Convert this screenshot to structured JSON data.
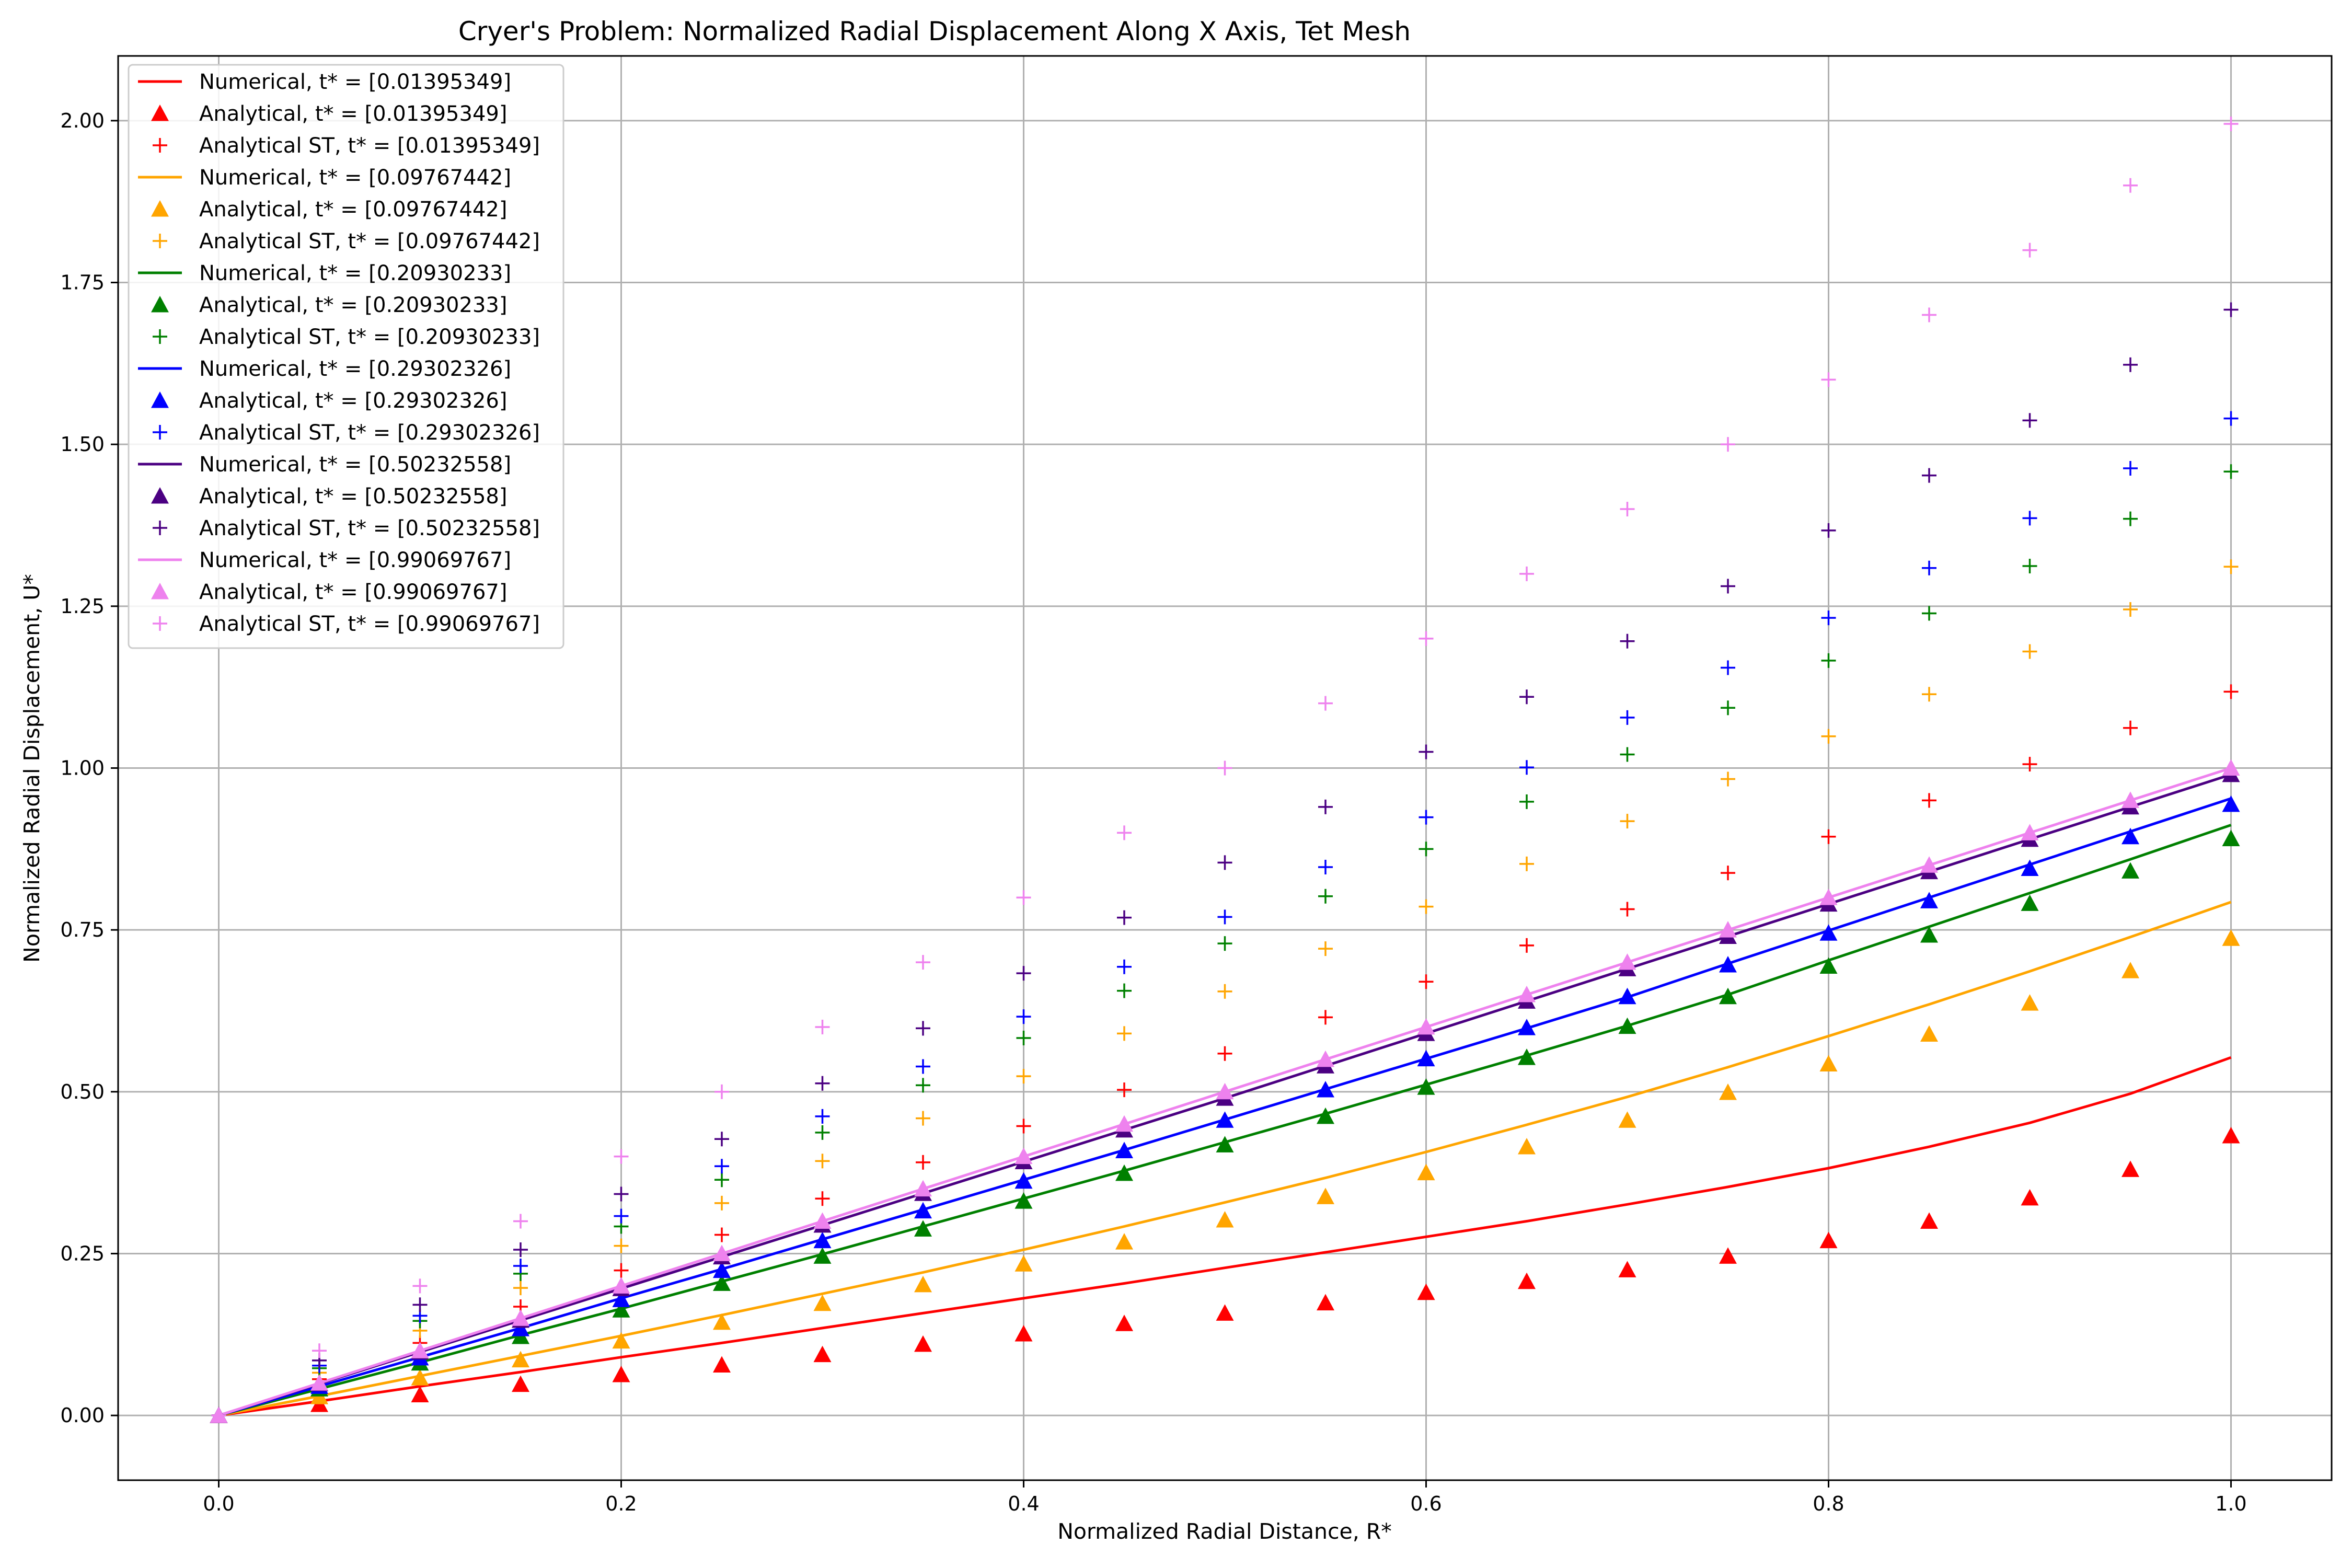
{
  "chart_data": {
    "type": "line",
    "title": "Cryer's Problem: Normalized Radial Displacement Along X Axis, Tet Mesh",
    "xlabel": "Normalized Radial Distance, R*",
    "ylabel": "Normalized Radial Displacement, U*",
    "xlim": [
      -0.05,
      1.05
    ],
    "ylim": [
      -0.1,
      2.1
    ],
    "xticks": [
      0.0,
      0.2,
      0.4,
      0.6,
      0.8,
      1.0
    ],
    "xtick_labels": [
      "0.0",
      "0.2",
      "0.4",
      "0.6",
      "0.8",
      "1.0"
    ],
    "yticks": [
      0.0,
      0.25,
      0.5,
      0.75,
      1.0,
      1.25,
      1.5,
      1.75,
      2.0
    ],
    "ytick_labels": [
      "0.00",
      "0.25",
      "0.50",
      "0.75",
      "1.00",
      "1.25",
      "1.50",
      "1.75",
      "2.00"
    ],
    "grid": true,
    "legend_position": "top-left",
    "x": [
      0.0,
      0.05,
      0.1,
      0.15,
      0.2,
      0.25,
      0.3,
      0.35,
      0.4,
      0.45,
      0.5,
      0.55,
      0.6,
      0.65,
      0.7,
      0.75,
      0.8,
      0.85,
      0.9,
      0.95,
      1.0
    ],
    "series": [
      {
        "name": "Numerical, t* = [0.01395349]",
        "kind": "line",
        "color": "#ff0000",
        "values": [
          0.0,
          0.022,
          0.045,
          0.067,
          0.09,
          0.112,
          0.135,
          0.158,
          0.181,
          0.204,
          0.228,
          0.252,
          0.276,
          0.3,
          0.326,
          0.353,
          0.382,
          0.415,
          0.452,
          0.497,
          0.553
        ]
      },
      {
        "name": "Analytical, t* = [0.01395349]",
        "kind": "triangle",
        "color": "#ff0000",
        "values": [
          0.0,
          0.017,
          0.032,
          0.048,
          0.063,
          0.078,
          0.094,
          0.11,
          0.126,
          0.142,
          0.158,
          0.174,
          0.19,
          0.207,
          0.225,
          0.246,
          0.27,
          0.3,
          0.336,
          0.38,
          0.432
        ]
      },
      {
        "name": "Analytical ST, t* = [0.01395349]",
        "kind": "plus",
        "color": "#ff0000",
        "values": [
          0.0,
          0.056,
          0.112,
          0.168,
          0.224,
          0.279,
          0.335,
          0.391,
          0.447,
          0.503,
          0.559,
          0.615,
          0.67,
          0.726,
          0.782,
          0.838,
          0.894,
          0.95,
          1.006,
          1.062,
          1.118
        ]
      },
      {
        "name": "Numerical, t* = [0.09767442]",
        "kind": "line",
        "color": "#ffa500",
        "values": [
          0.0,
          0.03,
          0.061,
          0.092,
          0.123,
          0.155,
          0.188,
          0.221,
          0.256,
          0.292,
          0.329,
          0.367,
          0.407,
          0.449,
          0.492,
          0.538,
          0.586,
          0.635,
          0.686,
          0.739,
          0.793
        ]
      },
      {
        "name": "Analytical, t* = [0.09767442]",
        "kind": "triangle",
        "color": "#ffa500",
        "values": [
          0.0,
          0.029,
          0.058,
          0.086,
          0.115,
          0.144,
          0.173,
          0.202,
          0.234,
          0.268,
          0.302,
          0.338,
          0.375,
          0.415,
          0.456,
          0.499,
          0.543,
          0.589,
          0.637,
          0.687,
          0.737
        ]
      },
      {
        "name": "Analytical ST, t* = [0.09767442]",
        "kind": "plus",
        "color": "#ffa500",
        "values": [
          0.0,
          0.066,
          0.131,
          0.197,
          0.262,
          0.328,
          0.393,
          0.459,
          0.524,
          0.59,
          0.655,
          0.721,
          0.786,
          0.852,
          0.918,
          0.983,
          1.049,
          1.114,
          1.18,
          1.245,
          1.311
        ]
      },
      {
        "name": "Numerical, t* = [0.20930233]",
        "kind": "line",
        "color": "#008000",
        "values": [
          0.0,
          0.041,
          0.082,
          0.124,
          0.165,
          0.207,
          0.249,
          0.292,
          0.335,
          0.378,
          0.422,
          0.466,
          0.511,
          0.556,
          0.602,
          0.65,
          0.703,
          0.755,
          0.807,
          0.859,
          0.912
        ]
      },
      {
        "name": "Analytical, t* = [0.20930233]",
        "kind": "triangle",
        "color": "#008000",
        "values": [
          0.0,
          0.041,
          0.081,
          0.122,
          0.163,
          0.204,
          0.246,
          0.288,
          0.331,
          0.374,
          0.418,
          0.462,
          0.507,
          0.553,
          0.601,
          0.647,
          0.694,
          0.742,
          0.791,
          0.841,
          0.891
        ]
      },
      {
        "name": "Analytical ST, t* = [0.20930233]",
        "kind": "plus",
        "color": "#008000",
        "values": [
          0.0,
          0.073,
          0.146,
          0.219,
          0.292,
          0.364,
          0.437,
          0.51,
          0.583,
          0.656,
          0.729,
          0.802,
          0.875,
          0.948,
          1.021,
          1.093,
          1.166,
          1.239,
          1.312,
          1.385,
          1.458
        ]
      },
      {
        "name": "Numerical, t* = [0.29302326]",
        "kind": "line",
        "color": "#0000ff",
        "values": [
          0.0,
          0.045,
          0.09,
          0.135,
          0.181,
          0.226,
          0.272,
          0.318,
          0.364,
          0.41,
          0.457,
          0.504,
          0.551,
          0.598,
          0.646,
          0.698,
          0.749,
          0.8,
          0.851,
          0.902,
          0.953
        ]
      },
      {
        "name": "Analytical, t* = [0.29302326]",
        "kind": "triangle",
        "color": "#0000ff",
        "values": [
          0.0,
          0.045,
          0.089,
          0.134,
          0.179,
          0.224,
          0.27,
          0.316,
          0.362,
          0.409,
          0.456,
          0.503,
          0.551,
          0.599,
          0.647,
          0.696,
          0.745,
          0.795,
          0.845,
          0.894,
          0.944
        ]
      },
      {
        "name": "Analytical ST, t* = [0.29302326]",
        "kind": "plus",
        "color": "#0000ff",
        "values": [
          0.0,
          0.077,
          0.154,
          0.231,
          0.308,
          0.385,
          0.462,
          0.539,
          0.616,
          0.693,
          0.77,
          0.847,
          0.924,
          1.001,
          1.078,
          1.155,
          1.232,
          1.309,
          1.386,
          1.463,
          1.54
        ]
      },
      {
        "name": "Numerical, t* = [0.50232558]",
        "kind": "line",
        "color": "#4b0082",
        "values": [
          0.0,
          0.049,
          0.098,
          0.147,
          0.196,
          0.245,
          0.294,
          0.343,
          0.392,
          0.441,
          0.49,
          0.54,
          0.59,
          0.64,
          0.69,
          0.74,
          0.79,
          0.84,
          0.89,
          0.94,
          0.99
        ]
      },
      {
        "name": "Analytical, t* = [0.50232558]",
        "kind": "triangle",
        "color": "#4b0082",
        "values": [
          0.0,
          0.049,
          0.098,
          0.147,
          0.196,
          0.245,
          0.294,
          0.343,
          0.392,
          0.441,
          0.49,
          0.54,
          0.59,
          0.64,
          0.69,
          0.74,
          0.79,
          0.84,
          0.89,
          0.94,
          0.99
        ]
      },
      {
        "name": "Analytical ST, t* = [0.50232558]",
        "kind": "plus",
        "color": "#4b0082",
        "values": [
          0.0,
          0.085,
          0.171,
          0.256,
          0.342,
          0.427,
          0.513,
          0.598,
          0.683,
          0.769,
          0.854,
          0.94,
          1.025,
          1.11,
          1.196,
          1.281,
          1.367,
          1.452,
          1.537,
          1.623,
          1.708
        ]
      },
      {
        "name": "Numerical, t* = [0.99069767]",
        "kind": "line",
        "color": "#ee82ee",
        "values": [
          0.0,
          0.05,
          0.1,
          0.15,
          0.2,
          0.25,
          0.3,
          0.35,
          0.4,
          0.45,
          0.5,
          0.55,
          0.6,
          0.65,
          0.7,
          0.75,
          0.8,
          0.85,
          0.9,
          0.95,
          1.0
        ]
      },
      {
        "name": "Analytical, t* = [0.99069767]",
        "kind": "triangle",
        "color": "#ee82ee",
        "values": [
          0.0,
          0.05,
          0.1,
          0.15,
          0.2,
          0.25,
          0.3,
          0.35,
          0.4,
          0.45,
          0.5,
          0.55,
          0.6,
          0.65,
          0.7,
          0.75,
          0.8,
          0.85,
          0.9,
          0.95,
          1.0
        ]
      },
      {
        "name": "Analytical ST, t* = [0.99069767]",
        "kind": "plus",
        "color": "#ee82ee",
        "values": [
          0.0,
          0.1,
          0.2,
          0.3,
          0.4,
          0.5,
          0.6,
          0.7,
          0.8,
          0.9,
          1.0,
          1.1,
          1.2,
          1.3,
          1.4,
          1.5,
          1.6,
          1.7,
          1.8,
          1.9,
          1.995
        ]
      }
    ]
  }
}
